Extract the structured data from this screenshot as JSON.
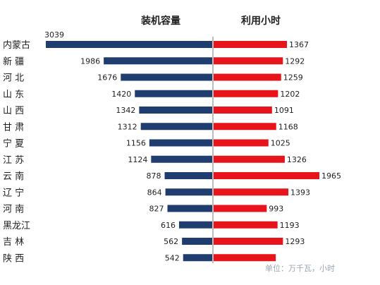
{
  "chart_data": {
    "type": "bar",
    "subtype": "butterfly",
    "header_left": "装机容量",
    "header_right": "利用小时",
    "categories": [
      "内蒙古",
      "新 疆",
      "河 北",
      "山 东",
      "山 西",
      "甘 肃",
      "宁 夏",
      "江 苏",
      "云 南",
      "辽 宁",
      "河 南",
      "黑龙江",
      "吉 林",
      "陕 西"
    ],
    "series": [
      {
        "name": "装机容量",
        "color": "#1f3d6e",
        "values": [
          3039,
          1986,
          1676,
          1420,
          1342,
          1312,
          1156,
          1124,
          878,
          864,
          827,
          616,
          562,
          542
        ]
      },
      {
        "name": "利用小时",
        "color": "#e8141b",
        "values": [
          1367,
          1292,
          1259,
          1202,
          1091,
          1168,
          1025,
          1326,
          1965,
          1393,
          993,
          1193,
          1293,
          1160
        ]
      }
    ],
    "value_labels_left": [
      "3039",
      "1986",
      "1676",
      "1420",
      "1342",
      "1312",
      "1156",
      "1124",
      "878",
      "864",
      "827",
      "616",
      "562",
      "542"
    ],
    "value_labels_right": [
      "1367",
      "1292",
      "1259",
      "1202",
      "1091",
      "1168",
      "1025",
      "1326",
      "1965",
      "1393",
      "993",
      "1193",
      "1293",
      ""
    ],
    "watermark": "单位：万千瓦，小时"
  }
}
